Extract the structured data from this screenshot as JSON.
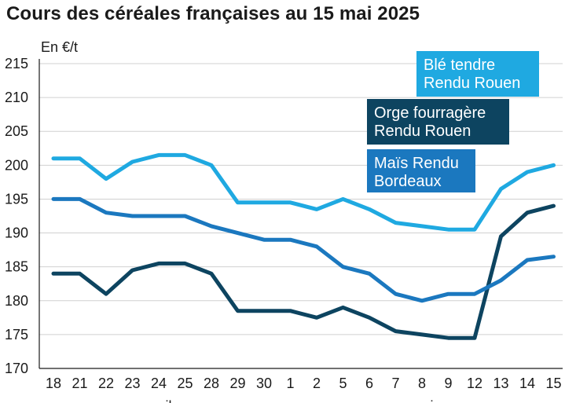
{
  "title": "Cours des céréales françaises au 15 mai 2025",
  "chart_data": {
    "type": "line",
    "title": "Cours des céréales françaises au 15 mai 2025",
    "ylabel": "En €/t",
    "xlabel": "",
    "ylim": [
      170,
      215
    ],
    "yticks": [
      170,
      175,
      180,
      185,
      190,
      195,
      200,
      205,
      210,
      215
    ],
    "grid": true,
    "categories": [
      "18",
      "21",
      "22",
      "23",
      "24",
      "25",
      "28",
      "29",
      "30",
      "1",
      "2",
      "5",
      "6",
      "7",
      "8",
      "9",
      "12",
      "13",
      "14",
      "15"
    ],
    "month_labels": [
      {
        "label": "avril",
        "from": 0,
        "to": 8
      },
      {
        "label": "mai",
        "from": 9,
        "to": 19
      }
    ],
    "series": [
      {
        "name": "Blé tendre Rendu Rouen",
        "legend_lines": [
          "Blé tendre",
          "Rendu Rouen"
        ],
        "color": "#1fa9e1",
        "values": [
          201,
          201,
          198,
          200.5,
          201.5,
          201.5,
          200,
          194.5,
          194.5,
          194.5,
          193.5,
          195,
          193.5,
          191.5,
          191,
          190.5,
          190.5,
          196.5,
          199,
          200
        ]
      },
      {
        "name": "Orge fourragère Rendu Rouen",
        "legend_lines": [
          "Orge fourragère",
          "Rendu Rouen"
        ],
        "color": "#0d4460",
        "values": [
          184,
          184,
          181,
          184.5,
          185.5,
          185.5,
          184,
          178.5,
          178.5,
          178.5,
          177.5,
          179,
          177.5,
          175.5,
          175,
          174.5,
          174.5,
          189.5,
          193,
          194
        ]
      },
      {
        "name": "Maïs Rendu Bordeaux",
        "legend_lines": [
          "Maïs Rendu",
          "Bordeaux"
        ],
        "color": "#1b78bf",
        "values": [
          195,
          195,
          193,
          192.5,
          192.5,
          192.5,
          191,
          190,
          189,
          189,
          188,
          185,
          184,
          181,
          180,
          181,
          181,
          183,
          186,
          186.5
        ]
      }
    ]
  }
}
